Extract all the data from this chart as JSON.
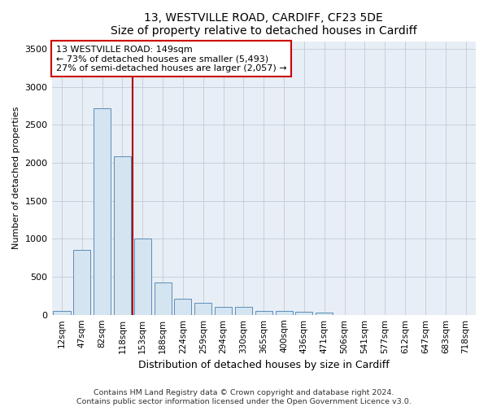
{
  "title1": "13, WESTVILLE ROAD, CARDIFF, CF23 5DE",
  "title2": "Size of property relative to detached houses in Cardiff",
  "xlabel": "Distribution of detached houses by size in Cardiff",
  "ylabel": "Number of detached properties",
  "categories": [
    "12sqm",
    "47sqm",
    "82sqm",
    "118sqm",
    "153sqm",
    "188sqm",
    "224sqm",
    "259sqm",
    "294sqm",
    "330sqm",
    "365sqm",
    "400sqm",
    "436sqm",
    "471sqm",
    "506sqm",
    "541sqm",
    "577sqm",
    "612sqm",
    "647sqm",
    "683sqm",
    "718sqm"
  ],
  "values": [
    50,
    850,
    2720,
    2080,
    1000,
    430,
    210,
    160,
    100,
    100,
    55,
    45,
    35,
    30,
    0,
    0,
    0,
    0,
    0,
    0,
    0
  ],
  "bar_color": "#d4e4f0",
  "bar_edge_color": "#5b8db8",
  "vline_color": "#aa0000",
  "annotation_line1": "13 WESTVILLE ROAD: 149sqm",
  "annotation_line2": "← 73% of detached houses are smaller (5,493)",
  "annotation_line3": "27% of semi-detached houses are larger (2,057) →",
  "annotation_box_color": "#cc0000",
  "ylim": [
    0,
    3600
  ],
  "yticks": [
    0,
    500,
    1000,
    1500,
    2000,
    2500,
    3000,
    3500
  ],
  "footer": "Contains HM Land Registry data © Crown copyright and database right 2024.\nContains public sector information licensed under the Open Government Licence v3.0.",
  "bg_color": "#ffffff",
  "plot_bg_color": "#e8eef5"
}
